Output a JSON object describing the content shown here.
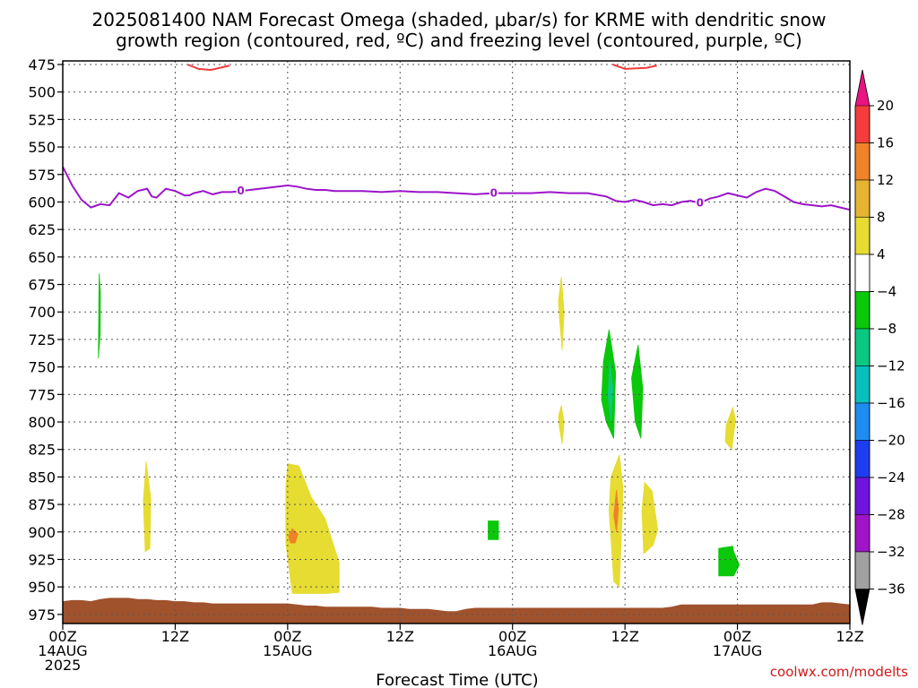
{
  "chart_data": {
    "type": "heatmap",
    "title_lines": [
      "2025081400 NAM Forecast Omega (shaded, μbar/s) for KRME with dendritic snow",
      "growth region (contoured, red, ºC) and freezing level (contoured, purple, ºC)"
    ],
    "xlabel": "Forecast Time (UTC)",
    "credit": "coolwx.com/modelts",
    "x_unit": "forecast hours from 2025-08-14 00Z",
    "xlim": [
      0,
      84
    ],
    "ylim": [
      475,
      980
    ],
    "y_ticks": [
      475,
      500,
      525,
      550,
      575,
      600,
      625,
      650,
      675,
      700,
      725,
      750,
      775,
      800,
      825,
      850,
      875,
      900,
      925,
      950,
      975
    ],
    "x_ticks": [
      {
        "hour": 0,
        "lines": [
          "00Z",
          "14AUG",
          "2025"
        ]
      },
      {
        "hour": 12,
        "lines": [
          "12Z"
        ]
      },
      {
        "hour": 24,
        "lines": [
          "00Z",
          "15AUG"
        ]
      },
      {
        "hour": 36,
        "lines": [
          "12Z"
        ]
      },
      {
        "hour": 48,
        "lines": [
          "00Z",
          "16AUG"
        ]
      },
      {
        "hour": 60,
        "lines": [
          "12Z"
        ]
      },
      {
        "hour": 72,
        "lines": [
          "00Z",
          "17AUG"
        ]
      },
      {
        "hour": 84,
        "lines": [
          "12Z"
        ]
      }
    ],
    "grid": true,
    "colorbar": {
      "unit": "μbar/s",
      "colors": [
        "#e8147f",
        "#f53c3c",
        "#f08228",
        "#e6b432",
        "#e6dc32",
        "#ffffff",
        "#0ac80a",
        "#0ac882",
        "#0abebe",
        "#1e8cf0",
        "#1e3cf0",
        "#6e14dc",
        "#a014c8",
        "#a0a0a0",
        "#000000"
      ],
      "labels": [
        "20",
        "16",
        "12",
        "8",
        "4",
        "−4",
        "−8",
        "−12",
        "−16",
        "−20",
        "−24",
        "−28",
        "−32",
        "−36"
      ]
    },
    "freezing_level": {
      "label": "0",
      "color": "#9b15c9",
      "x": [
        0,
        1,
        2,
        3,
        4,
        5,
        6,
        7,
        8,
        8.5,
        9,
        9.5,
        10,
        11,
        12,
        13,
        13.5,
        14,
        15,
        16,
        17,
        18,
        19,
        20,
        21,
        22,
        23,
        24,
        25,
        26,
        27,
        28,
        29,
        30,
        32,
        34,
        36,
        38,
        40,
        42,
        44,
        46,
        48,
        50,
        52,
        54,
        56,
        58,
        59,
        60,
        61,
        62,
        63,
        64,
        65,
        66,
        67,
        68,
        69,
        70,
        71,
        72,
        73,
        74,
        75,
        76,
        77,
        78,
        79,
        80,
        81,
        82,
        83,
        84
      ],
      "y": [
        568,
        585,
        598,
        605,
        602,
        603,
        592,
        596,
        590,
        589,
        588,
        595,
        596,
        588,
        590,
        594,
        594,
        592,
        590,
        593,
        591,
        591,
        590,
        589,
        588,
        587,
        586,
        585,
        586,
        588,
        589,
        589,
        590,
        590,
        590,
        591,
        590,
        591,
        591,
        592,
        593,
        592,
        592,
        592,
        591,
        592,
        592,
        595,
        599,
        600,
        598,
        600,
        603,
        602,
        603,
        600,
        599,
        601,
        597,
        595,
        592,
        594,
        596,
        591,
        588,
        590,
        595,
        600,
        602,
        603,
        604,
        603,
        605,
        607
      ]
    },
    "dendritic_zone": {
      "color": "#f03c3c",
      "segments": [
        {
          "x": [
            13.3,
            14.5,
            15.8,
            17.8
          ],
          "y": [
            475,
            479,
            480,
            476
          ]
        },
        {
          "x": [
            58.7,
            60.0,
            62.3,
            63.4
          ],
          "y": [
            475,
            479,
            478,
            476
          ]
        }
      ]
    },
    "omega_shading": [
      {
        "color": "#0ac80a",
        "x": [
          3.88,
          4.02,
          4.0,
          3.8,
          3.85
        ],
        "y": [
          665,
          682,
          720,
          742,
          692
        ]
      },
      {
        "color": "#e6dc32",
        "x": [
          8.9,
          9.4,
          9.3,
          8.8,
          8.6
        ],
        "y": [
          836,
          870,
          915,
          918,
          872
        ]
      },
      {
        "color": "#e6dc32",
        "x": [
          24.0,
          25.2,
          26.5,
          28.0,
          29.5,
          29.5,
          28.2,
          24.5,
          23.8,
          23.8
        ],
        "y": [
          838,
          840,
          868,
          888,
          928,
          955,
          956,
          956,
          910,
          860
        ]
      },
      {
        "color": "#f08228",
        "x": [
          24.5,
          25.1,
          24.8,
          24.3,
          24.1
        ],
        "y": [
          897,
          902,
          910,
          910,
          904
        ]
      },
      {
        "color": "#0ac80a",
        "x": [
          45.4,
          46.5,
          46.5,
          45.4
        ],
        "y": [
          890,
          890,
          907,
          907
        ]
      },
      {
        "color": "#e6dc32",
        "x": [
          53.2,
          53.5,
          53.3,
          53.0,
          52.9
        ],
        "y": [
          668,
          700,
          735,
          705,
          690
        ]
      },
      {
        "color": "#e6dc32",
        "x": [
          53.2,
          53.5,
          53.3,
          53.0,
          52.9
        ],
        "y": [
          785,
          800,
          820,
          805,
          795
        ]
      },
      {
        "color": "#0ac80a",
        "x": [
          58.3,
          59.0,
          58.8,
          58.0,
          57.5,
          57.7
        ],
        "y": [
          716,
          755,
          815,
          800,
          780,
          745
        ]
      },
      {
        "color": "#0ac882",
        "x": [
          58.4,
          58.7,
          58.5,
          58.2
        ],
        "y": [
          745,
          770,
          800,
          775
        ]
      },
      {
        "color": "#0ac80a",
        "x": [
          61.4,
          61.9,
          61.7,
          61.1,
          60.7
        ],
        "y": [
          730,
          770,
          815,
          800,
          760
        ]
      },
      {
        "color": "#e6dc32",
        "x": [
          59.4,
          59.8,
          59.4,
          58.8,
          58.3,
          58.5
        ],
        "y": [
          830,
          862,
          950,
          945,
          880,
          850
        ]
      },
      {
        "color": "#f08228",
        "x": [
          59.1,
          59.3,
          59.1,
          58.8
        ],
        "y": [
          862,
          880,
          900,
          885
        ]
      },
      {
        "color": "#e6dc32",
        "x": [
          62.1,
          62.9,
          63.5,
          63.0,
          62.0,
          61.8
        ],
        "y": [
          855,
          863,
          898,
          912,
          920,
          880
        ]
      },
      {
        "color": "#e6dc32",
        "x": [
          71.5,
          71.8,
          71.4,
          70.7,
          70.8
        ],
        "y": [
          787,
          798,
          825,
          818,
          803
        ]
      },
      {
        "color": "#0ac80a",
        "x": [
          70.0,
          71.5,
          71.6,
          72.2,
          71.6,
          70.0
        ],
        "y": [
          915,
          913,
          918,
          930,
          940,
          940
        ]
      }
    ],
    "terrain": {
      "color": "#a0522d",
      "x": [
        0,
        1,
        2,
        3,
        4,
        5,
        6,
        7,
        8,
        9,
        10,
        11,
        12,
        13,
        14,
        15,
        16,
        17,
        18,
        19,
        20,
        21,
        22,
        23,
        24,
        25,
        26,
        27,
        28,
        29,
        30,
        31,
        32,
        33,
        34,
        35,
        36,
        37,
        38,
        39,
        40,
        41,
        42,
        43,
        44,
        45,
        46,
        47,
        48,
        49,
        50,
        51,
        52,
        53,
        54,
        55,
        56,
        57,
        58,
        59,
        60,
        61,
        62,
        63,
        64,
        65,
        66,
        67,
        68,
        69,
        70,
        71,
        72,
        73,
        74,
        75,
        76,
        77,
        78,
        79,
        80,
        81,
        82,
        83,
        84
      ],
      "y": [
        963,
        962,
        962,
        963,
        961,
        960,
        960,
        960,
        961,
        961,
        962,
        962,
        963,
        963,
        964,
        964,
        965,
        965,
        965,
        965,
        965,
        965,
        965,
        965,
        965,
        966,
        967,
        967,
        968,
        968,
        968,
        968,
        968,
        968,
        969,
        969,
        969,
        970,
        970,
        970,
        971,
        972,
        972,
        970,
        969,
        969,
        969,
        969,
        969,
        969,
        969,
        969,
        969,
        969,
        969,
        969,
        969,
        969,
        969,
        969,
        969,
        969,
        969,
        969,
        969,
        968,
        966,
        966,
        966,
        966,
        966,
        966,
        966,
        966,
        966,
        966,
        966,
        966,
        966,
        966,
        966,
        964,
        964,
        965,
        966
      ]
    }
  }
}
